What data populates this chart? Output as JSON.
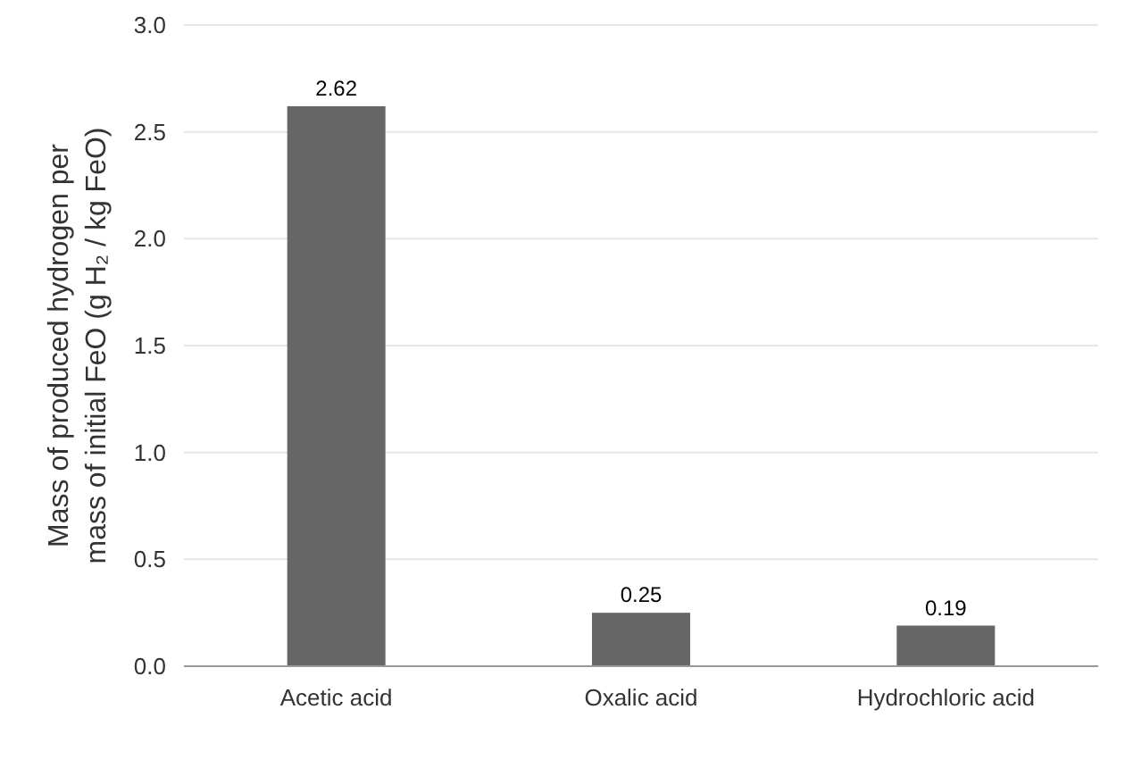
{
  "chart_data": {
    "type": "bar",
    "ylabel": "Mass of produced hydrogen per mass of initial FeO (g H₂ / kg FeO)",
    "categories": [
      "Acetic acid",
      "Oxalic acid",
      "Hydrochloric acid"
    ],
    "values": [
      2.62,
      0.25,
      0.19
    ],
    "color": "#666666",
    "ylim": [
      0,
      3
    ],
    "yticks": [
      "0.0",
      "0.5",
      "1.0",
      "1.5",
      "2.0",
      "2.5",
      "3.0"
    ],
    "grid": "y",
    "data_labels": true
  }
}
